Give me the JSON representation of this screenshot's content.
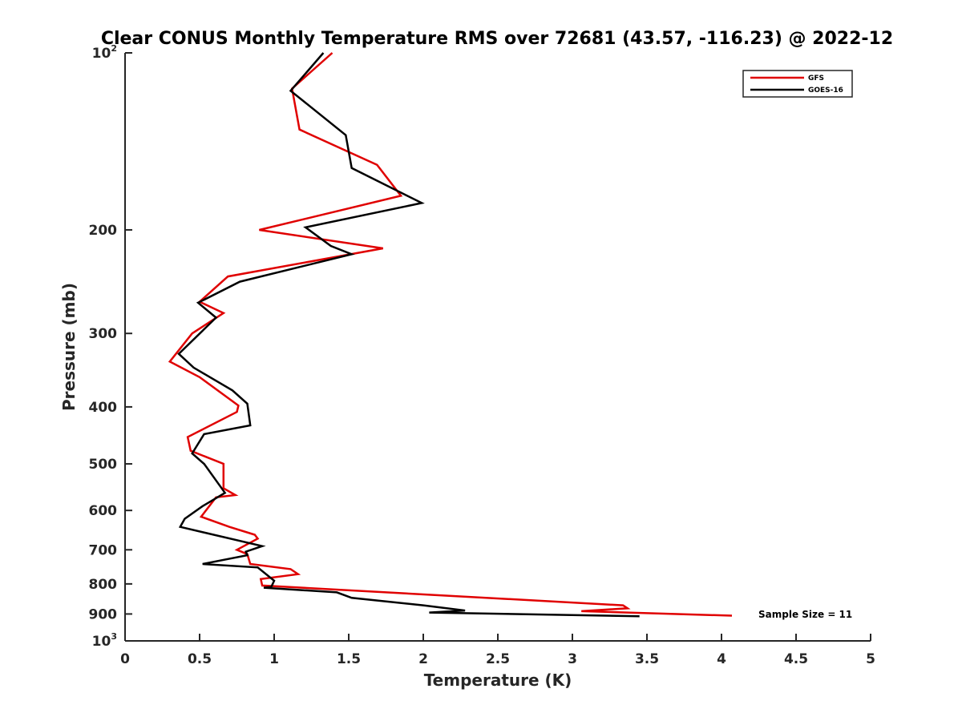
{
  "chart_data": {
    "type": "line",
    "title": "Clear CONUS Monthly Temperature RMS over 72681 (43.57, -116.23) @ 2022-12",
    "xlabel": "Temperature (K)",
    "ylabel": "Pressure (mb)",
    "xlim": [
      0,
      5
    ],
    "ylim": [
      100,
      1000
    ],
    "y_scale": "log",
    "y_reversed": true,
    "x_ticks": [
      "0",
      "0.5",
      "1",
      "1.5",
      "2",
      "2.5",
      "3",
      "3.5",
      "4",
      "4.5",
      "5"
    ],
    "y_ticks": [
      {
        "value": 100,
        "base": "10",
        "exp": "2"
      },
      {
        "value": 200,
        "label": "200"
      },
      {
        "value": 300,
        "label": "300"
      },
      {
        "value": 400,
        "label": "400"
      },
      {
        "value": 500,
        "label": "500"
      },
      {
        "value": 600,
        "label": "600"
      },
      {
        "value": 700,
        "label": "700"
      },
      {
        "value": 800,
        "label": "800"
      },
      {
        "value": 900,
        "label": "900"
      },
      {
        "value": 1000,
        "base": "10",
        "exp": "3"
      }
    ],
    "grid": false,
    "legend_position": "top-right",
    "annotation": "Sample Size = 11",
    "series": [
      {
        "name": "GFS",
        "color": "#e00000",
        "points": [
          [
            1.39,
            100
          ],
          [
            1.12,
            115
          ],
          [
            1.17,
            135
          ],
          [
            1.69,
            155
          ],
          [
            1.85,
            175
          ],
          [
            0.9,
            200
          ],
          [
            1.73,
            215
          ],
          [
            0.69,
            240
          ],
          [
            0.5,
            265
          ],
          [
            0.66,
            277
          ],
          [
            0.45,
            300
          ],
          [
            0.3,
            335
          ],
          [
            0.5,
            356
          ],
          [
            0.76,
            398
          ],
          [
            0.75,
            408
          ],
          [
            0.42,
            450
          ],
          [
            0.44,
            475
          ],
          [
            0.66,
            500
          ],
          [
            0.66,
            550
          ],
          [
            0.74,
            565
          ],
          [
            0.61,
            570
          ],
          [
            0.51,
            615
          ],
          [
            0.7,
            640
          ],
          [
            0.87,
            660
          ],
          [
            0.89,
            670
          ],
          [
            0.75,
            700
          ],
          [
            0.82,
            712
          ],
          [
            0.84,
            740
          ],
          [
            1.11,
            755
          ],
          [
            1.16,
            770
          ],
          [
            0.91,
            785
          ],
          [
            0.92,
            805
          ],
          [
            3.34,
            870
          ],
          [
            3.37,
            880
          ],
          [
            3.06,
            890
          ],
          [
            4.07,
            906
          ]
        ]
      },
      {
        "name": "GOES-16",
        "color": "#000000",
        "points": [
          [
            1.33,
            100
          ],
          [
            1.11,
            116
          ],
          [
            1.48,
            138
          ],
          [
            1.52,
            157
          ],
          [
            1.99,
            180
          ],
          [
            1.21,
            198
          ],
          [
            1.38,
            213
          ],
          [
            1.52,
            220
          ],
          [
            0.77,
            245
          ],
          [
            0.49,
            266
          ],
          [
            0.61,
            282
          ],
          [
            0.36,
            325
          ],
          [
            0.46,
            343
          ],
          [
            0.72,
            375
          ],
          [
            0.82,
            395
          ],
          [
            0.84,
            430
          ],
          [
            0.53,
            445
          ],
          [
            0.45,
            480
          ],
          [
            0.53,
            500
          ],
          [
            0.67,
            560
          ],
          [
            0.52,
            590
          ],
          [
            0.4,
            620
          ],
          [
            0.37,
            640
          ],
          [
            0.92,
            690
          ],
          [
            0.81,
            705
          ],
          [
            0.82,
            715
          ],
          [
            0.52,
            740
          ],
          [
            0.89,
            750
          ],
          [
            1.0,
            790
          ],
          [
            0.98,
            810
          ],
          [
            0.93,
            812
          ],
          [
            1.42,
            827
          ],
          [
            1.52,
            845
          ],
          [
            2.0,
            870
          ],
          [
            2.28,
            888
          ],
          [
            2.04,
            895
          ],
          [
            3.45,
            908
          ]
        ]
      }
    ]
  }
}
